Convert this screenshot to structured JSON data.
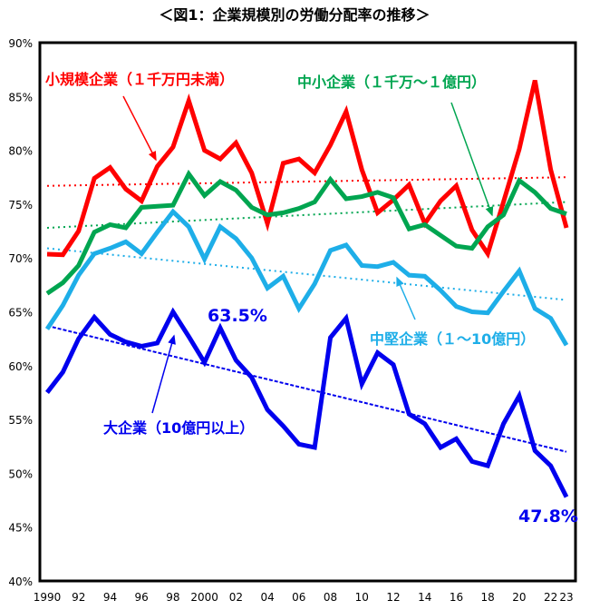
{
  "chart_data": {
    "type": "line",
    "title": "＜図1：企業規模別の労働分配率の推移＞",
    "xlabel": "",
    "ylabel": "",
    "ylim": [
      40,
      90
    ],
    "yticks": [
      "40%",
      "45%",
      "50%",
      "55%",
      "60%",
      "65%",
      "70%",
      "75%",
      "80%",
      "85%",
      "90%"
    ],
    "ytick_values": [
      40,
      45,
      50,
      55,
      60,
      65,
      70,
      75,
      80,
      85,
      90
    ],
    "x": [
      1990,
      1991,
      1992,
      1993,
      1994,
      1995,
      1996,
      1997,
      1998,
      1999,
      2000,
      2001,
      2002,
      2003,
      2004,
      2005,
      2006,
      2007,
      2008,
      2009,
      2010,
      2011,
      2012,
      2013,
      2014,
      2015,
      2016,
      2017,
      2018,
      2019,
      2020,
      2021,
      2022,
      2023
    ],
    "xtick_labels": [
      {
        "x": 1990,
        "label": "1990"
      },
      {
        "x": 1992,
        "label": "92"
      },
      {
        "x": 1994,
        "label": "94"
      },
      {
        "x": 1996,
        "label": "96"
      },
      {
        "x": 1998,
        "label": "98"
      },
      {
        "x": 2000,
        "label": "2000"
      },
      {
        "x": 2002,
        "label": "02"
      },
      {
        "x": 2004,
        "label": "04"
      },
      {
        "x": 2006,
        "label": "06"
      },
      {
        "x": 2008,
        "label": "08"
      },
      {
        "x": 2010,
        "label": "10"
      },
      {
        "x": 2012,
        "label": "12"
      },
      {
        "x": 2014,
        "label": "14"
      },
      {
        "x": 2016,
        "label": "16"
      },
      {
        "x": 2018,
        "label": "18"
      },
      {
        "x": 2020,
        "label": "20"
      },
      {
        "x": 2022,
        "label": "22"
      },
      {
        "x": 2023,
        "label": "23"
      }
    ],
    "grid": false,
    "series": [
      {
        "name": "小規模企業（１千万円未満）",
        "color": "#ff0000",
        "trend": [
          76.7,
          77.5
        ],
        "values": [
          70.35,
          70.3,
          72.5,
          77.4,
          78.4,
          76.4,
          75.3,
          78.5,
          80.3,
          84.6,
          80.0,
          79.2,
          80.7,
          77.9,
          73.2,
          78.8,
          79.2,
          77.9,
          80.5,
          83.6,
          78.2,
          74.2,
          75.4,
          76.8,
          73.2,
          75.3,
          76.7,
          72.6,
          70.4,
          75.2,
          80.1,
          86.5,
          78.2,
          72.8
        ]
      },
      {
        "name": "中小企業（１千万～１億円）",
        "color": "#00a550",
        "trend": [
          72.8,
          75.2
        ],
        "values": [
          66.7,
          67.7,
          69.3,
          72.4,
          73.1,
          72.8,
          74.7,
          74.8,
          74.9,
          77.8,
          75.8,
          77.1,
          76.3,
          74.7,
          74.0,
          74.2,
          74.6,
          75.2,
          77.3,
          75.5,
          75.7,
          76.1,
          75.6,
          72.7,
          73.1,
          72.1,
          71.1,
          70.9,
          72.9,
          74.0,
          77.2,
          76.1,
          74.6,
          74.1
        ]
      },
      {
        "name": "中堅企業（１～10億円）",
        "color": "#1eaee8",
        "trend": [
          70.9,
          66.1
        ],
        "values": [
          63.4,
          65.6,
          68.4,
          70.4,
          70.9,
          71.5,
          70.4,
          72.4,
          74.3,
          72.9,
          69.9,
          72.9,
          71.8,
          70.0,
          67.2,
          68.3,
          65.3,
          67.6,
          70.7,
          71.2,
          69.3,
          69.2,
          69.6,
          68.4,
          68.3,
          67.0,
          65.5,
          65.0,
          64.9,
          66.9,
          68.8,
          65.3,
          64.4,
          61.9
        ]
      },
      {
        "name": "大企業（10億円以上）",
        "color": "#0000ee",
        "trend": [
          63.7,
          52.0
        ],
        "values": [
          57.5,
          59.4,
          62.5,
          64.5,
          62.9,
          62.2,
          61.8,
          62.1,
          65.0,
          62.7,
          60.3,
          63.5,
          60.5,
          58.9,
          55.9,
          54.4,
          52.7,
          52.4,
          62.6,
          64.4,
          58.3,
          61.2,
          60.1,
          55.5,
          54.6,
          52.4,
          53.2,
          51.1,
          50.7,
          54.6,
          57.2,
          52.1,
          50.7,
          47.8
        ]
      }
    ],
    "annotations": [
      {
        "text": "63.5%",
        "x": 2001,
        "series": "大企業（10億円以上）"
      },
      {
        "text": "47.8%",
        "x": 2023,
        "series": "大企業（10億円以上）"
      }
    ],
    "legend": "inline labels with arrows"
  }
}
